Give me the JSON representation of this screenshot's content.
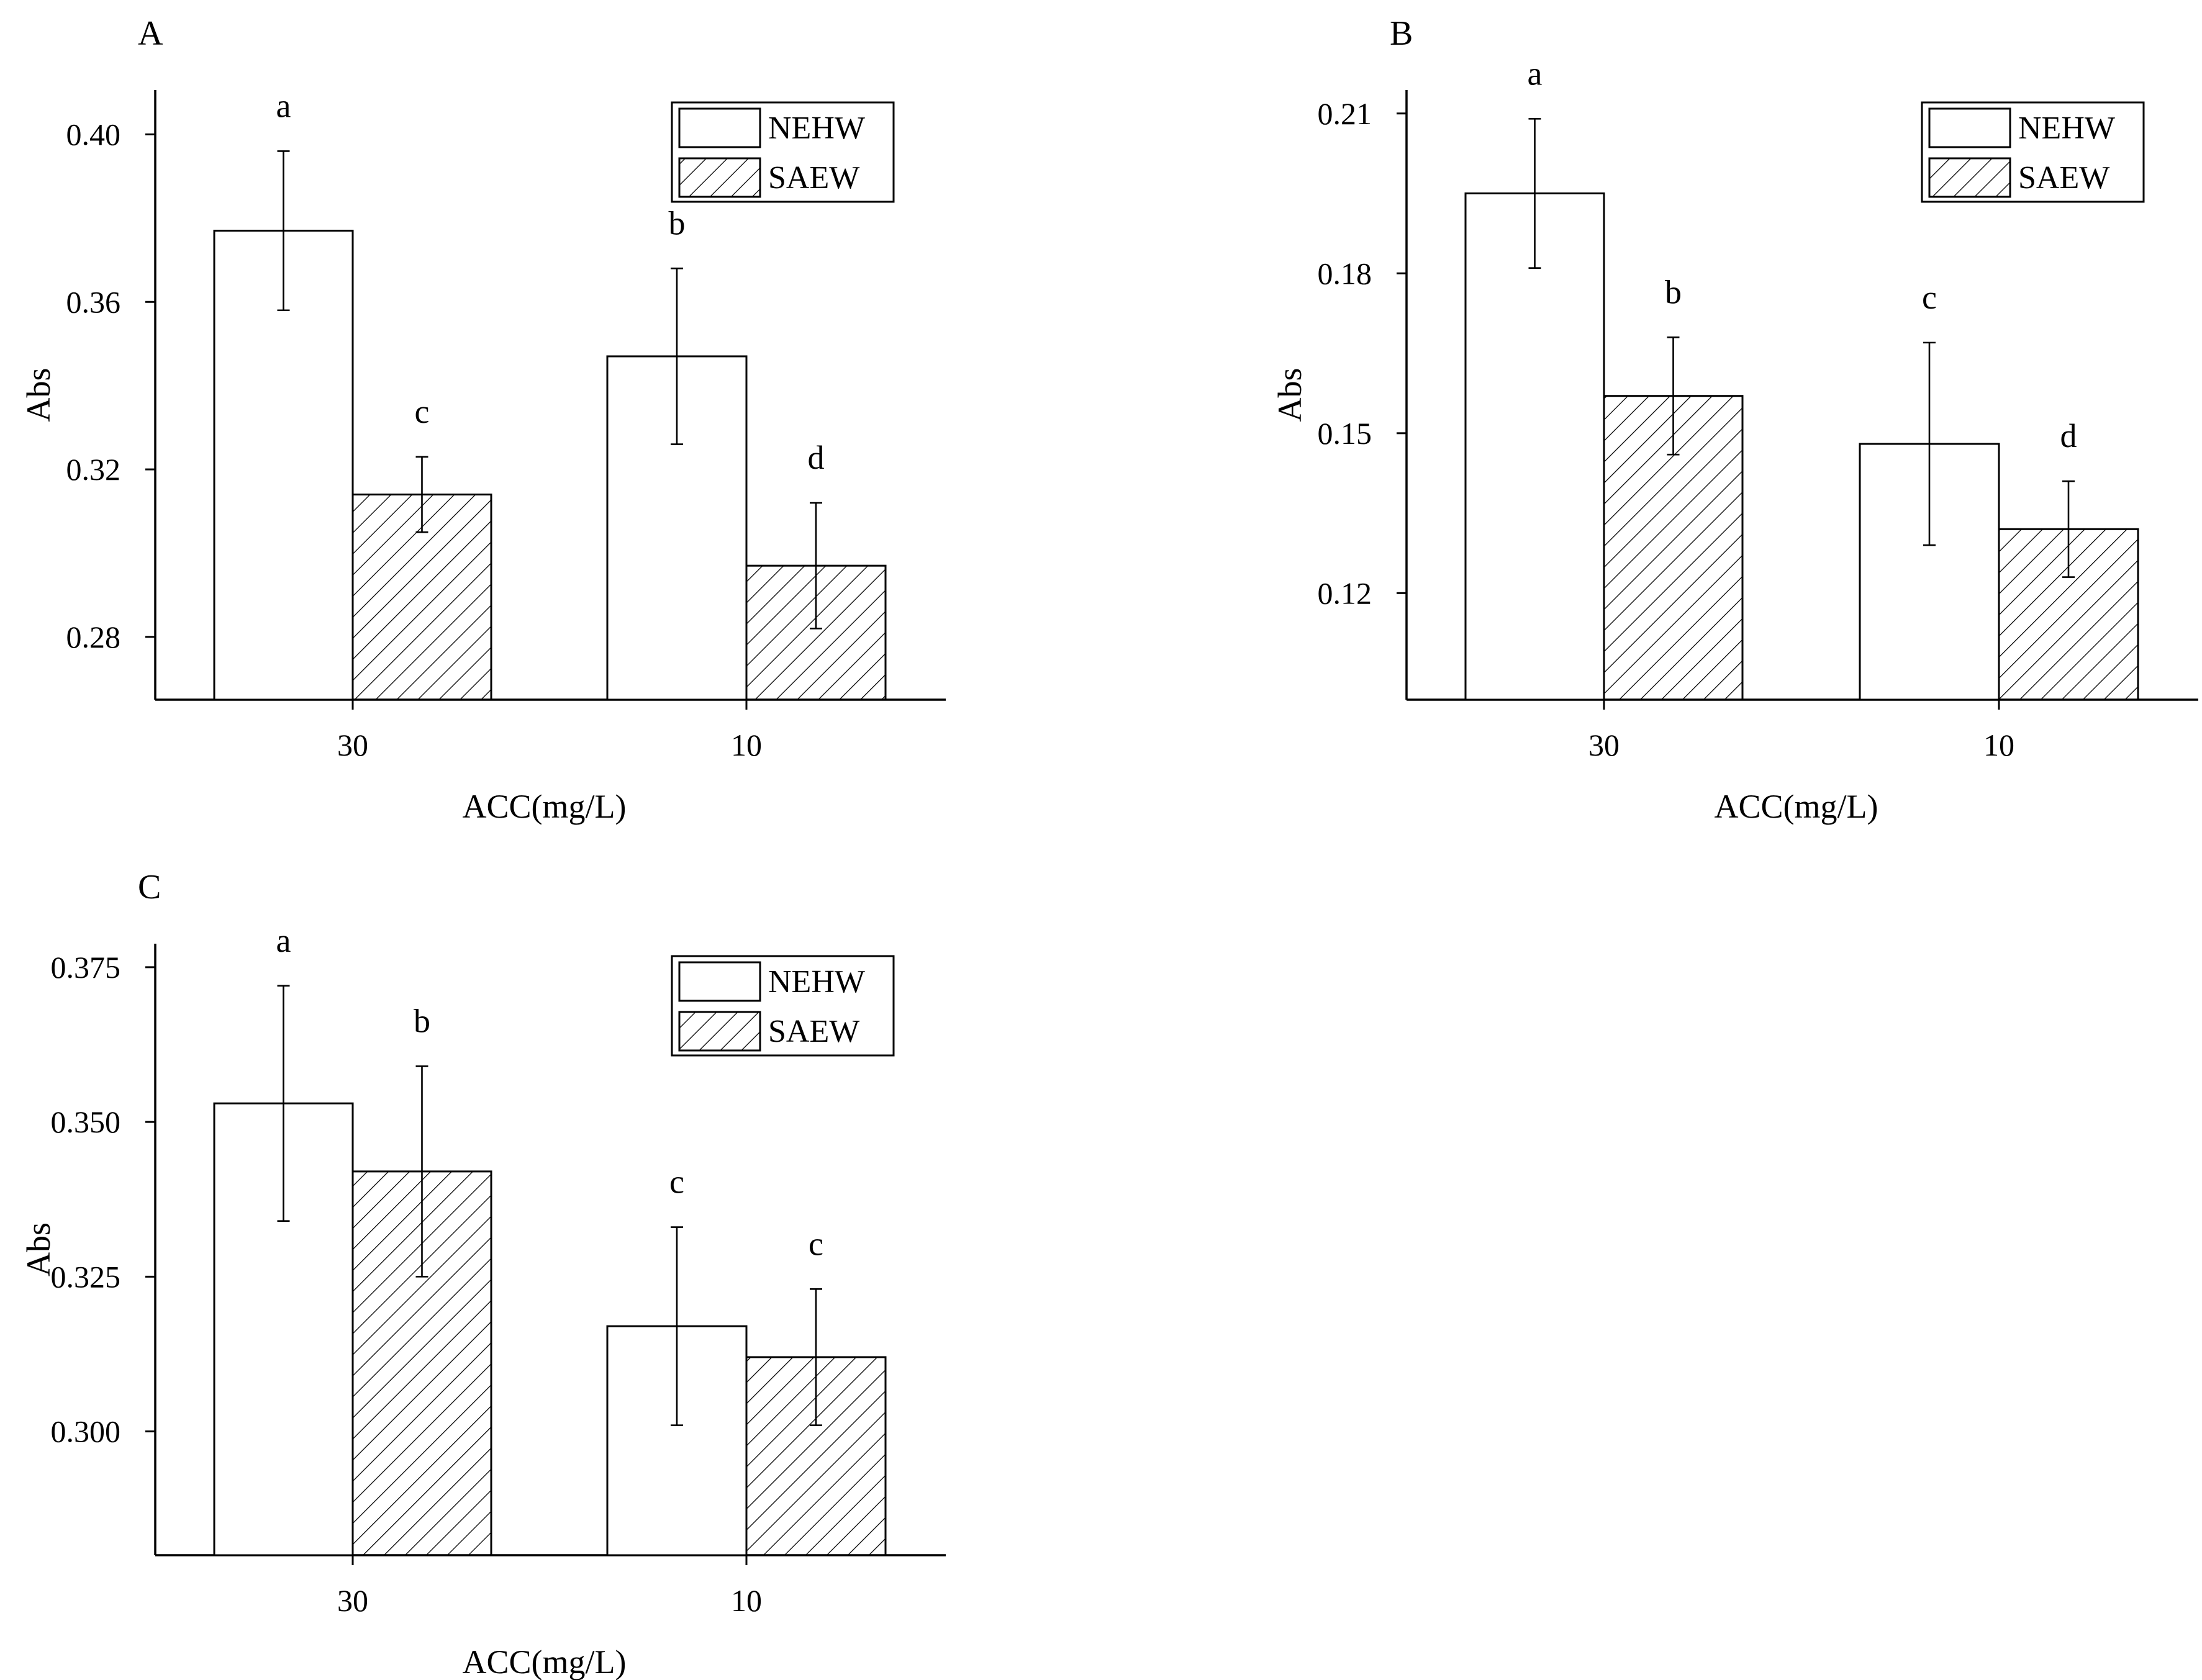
{
  "chart_data": [
    {
      "type": "bar",
      "panel_label": "A",
      "xlabel": "ACC(mg/L)",
      "ylabel": "Abs",
      "categories": [
        "30",
        "10"
      ],
      "ylim": [
        0.265,
        0.405
      ],
      "yticks": [
        "0.28",
        "0.32",
        "0.36",
        "0.40"
      ],
      "legend_position": "top-right",
      "series": [
        {
          "name": "NEHW",
          "fill": "none",
          "values": [
            0.377,
            0.347
          ],
          "errors": [
            0.019,
            0.021
          ],
          "letters": [
            "a",
            "b"
          ]
        },
        {
          "name": "SAEW",
          "fill": "hatched",
          "values": [
            0.314,
            0.297
          ],
          "errors": [
            0.009,
            0.015
          ],
          "letters": [
            "c",
            "d"
          ]
        }
      ]
    },
    {
      "type": "bar",
      "panel_label": "B",
      "xlabel": "ACC(mg/L)",
      "ylabel": "Abs",
      "categories": [
        "30",
        "10"
      ],
      "ylim": [
        0.1,
        0.21
      ],
      "yticks": [
        "0.12",
        "0.15",
        "0.18",
        "0.21"
      ],
      "legend_position": "top-right",
      "series": [
        {
          "name": "NEHW",
          "fill": "none",
          "values": [
            0.195,
            0.148
          ],
          "errors": [
            0.014,
            0.019
          ],
          "letters": [
            "a",
            "c"
          ]
        },
        {
          "name": "SAEW",
          "fill": "hatched",
          "values": [
            0.157,
            0.132
          ],
          "errors": [
            0.011,
            0.009
          ],
          "letters": [
            "b",
            "d"
          ]
        }
      ]
    },
    {
      "type": "bar",
      "panel_label": "C",
      "xlabel": "ACC(mg/L)",
      "ylabel": "Abs",
      "categories": [
        "30",
        "10"
      ],
      "ylim": [
        0.28,
        0.375
      ],
      "yticks": [
        "0.300",
        "0.325",
        "0.350",
        "0.375"
      ],
      "legend_position": "top-right",
      "series": [
        {
          "name": "NEHW",
          "fill": "none",
          "values": [
            0.353,
            0.317
          ],
          "errors": [
            0.019,
            0.016
          ],
          "letters": [
            "a",
            "c"
          ]
        },
        {
          "name": "SAEW",
          "fill": "hatched",
          "values": [
            0.342,
            0.312
          ],
          "errors": [
            0.017,
            0.011
          ],
          "letters": [
            "b",
            "c"
          ]
        }
      ]
    }
  ]
}
